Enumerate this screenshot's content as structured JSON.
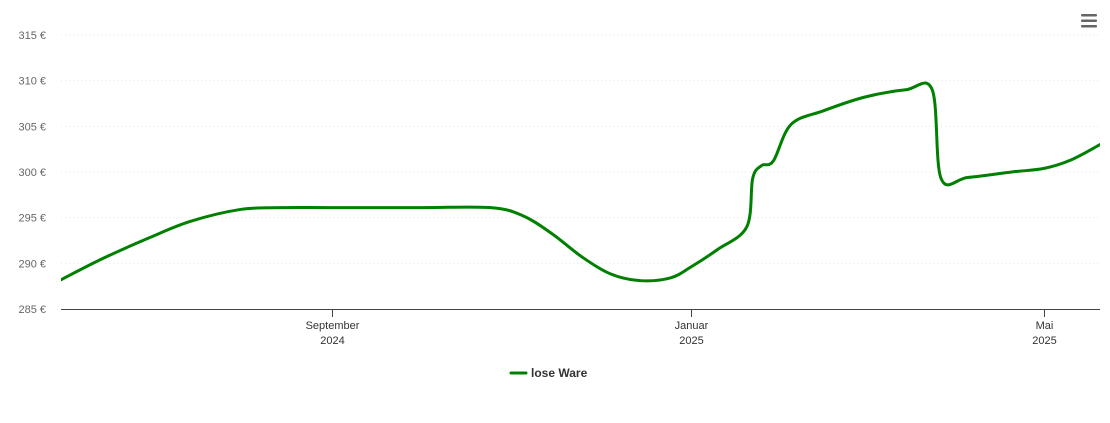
{
  "chart_data": {
    "type": "line",
    "title": "",
    "xlabel": "",
    "ylabel": "",
    "ylim": [
      285,
      315
    ],
    "xlim": [
      "2024-06-01",
      "2025-05-20"
    ],
    "grid": true,
    "legend_position": "bottom-center",
    "y_ticks": [
      {
        "value": 285,
        "label": "285 €"
      },
      {
        "value": 290,
        "label": "290 €"
      },
      {
        "value": 295,
        "label": "295 €"
      },
      {
        "value": 300,
        "label": "300 €"
      },
      {
        "value": 305,
        "label": "305 €"
      },
      {
        "value": 310,
        "label": "310 €"
      },
      {
        "value": 315,
        "label": "315 €"
      }
    ],
    "x_ticks": [
      {
        "date": "2024-09-01",
        "month": "September",
        "year": "2024"
      },
      {
        "date": "2025-01-01",
        "month": "Januar",
        "year": "2025"
      },
      {
        "date": "2025-05-01",
        "month": "Mai",
        "year": "2025"
      }
    ],
    "series": [
      {
        "name": "lose Ware",
        "color": "#008000",
        "points": [
          {
            "x": "2024-06-01",
            "y": 288.2
          },
          {
            "x": "2024-06-15",
            "y": 290.5
          },
          {
            "x": "2024-07-01",
            "y": 292.8
          },
          {
            "x": "2024-07-15",
            "y": 294.6
          },
          {
            "x": "2024-08-01",
            "y": 295.9
          },
          {
            "x": "2024-08-15",
            "y": 296.1
          },
          {
            "x": "2024-09-01",
            "y": 296.1
          },
          {
            "x": "2024-10-01",
            "y": 296.1
          },
          {
            "x": "2024-10-25",
            "y": 296.1
          },
          {
            "x": "2024-11-05",
            "y": 295.2
          },
          {
            "x": "2024-11-15",
            "y": 293.2
          },
          {
            "x": "2024-11-25",
            "y": 290.7
          },
          {
            "x": "2024-12-05",
            "y": 288.8
          },
          {
            "x": "2024-12-15",
            "y": 288.1
          },
          {
            "x": "2024-12-25",
            "y": 288.4
          },
          {
            "x": "2025-01-01",
            "y": 289.6
          },
          {
            "x": "2025-01-10",
            "y": 291.5
          },
          {
            "x": "2025-01-20",
            "y": 294.0
          },
          {
            "x": "2025-01-22",
            "y": 299.3
          },
          {
            "x": "2025-01-25",
            "y": 300.7
          },
          {
            "x": "2025-01-29",
            "y": 301.2
          },
          {
            "x": "2025-02-04",
            "y": 305.2
          },
          {
            "x": "2025-02-15",
            "y": 306.7
          },
          {
            "x": "2025-03-01",
            "y": 308.2
          },
          {
            "x": "2025-03-15",
            "y": 309.0
          },
          {
            "x": "2025-03-24",
            "y": 309.0
          },
          {
            "x": "2025-03-27",
            "y": 299.3
          },
          {
            "x": "2025-04-05",
            "y": 299.4
          },
          {
            "x": "2025-04-20",
            "y": 300.0
          },
          {
            "x": "2025-05-01",
            "y": 300.4
          },
          {
            "x": "2025-05-10",
            "y": 301.3
          },
          {
            "x": "2025-05-20",
            "y": 303.0
          }
        ]
      }
    ]
  },
  "ui": {
    "menu_icon": "hamburger-menu-icon"
  }
}
